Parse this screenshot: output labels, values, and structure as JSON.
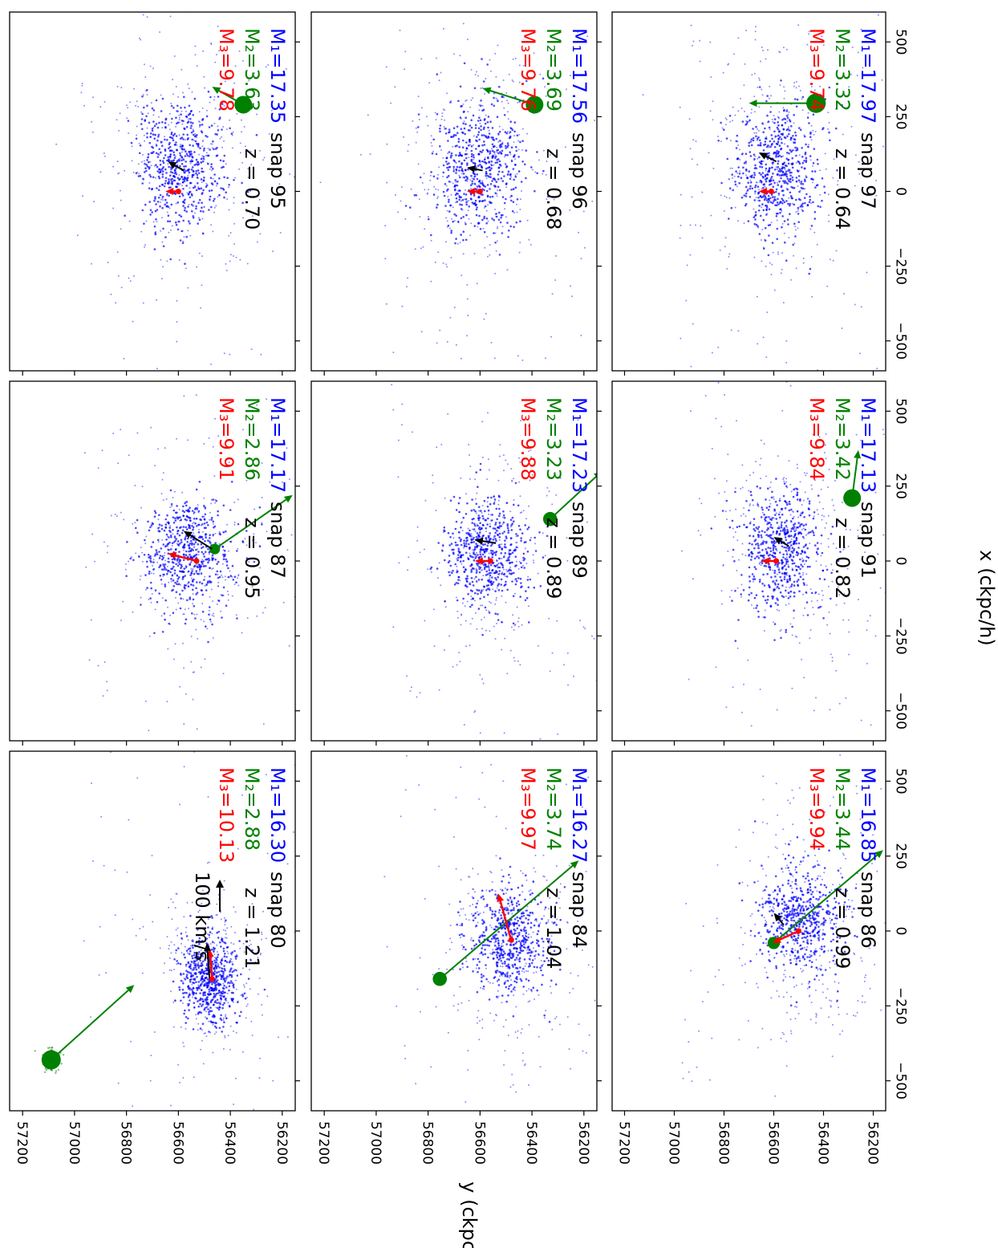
{
  "figure": {
    "x_axis_label": "x (ckpc/h)",
    "y_axis_label": "y (ckpc/h)",
    "scale_arrow_label": "100 km/s"
  },
  "colors": {
    "primary": "#0000ff",
    "secondary": "#008000",
    "tertiary": "#ff0000",
    "velocity": "#000000"
  },
  "chart_data": {
    "type": "scatter",
    "orientation": "figure rotated 90 degrees clockwise",
    "xlabel": "x (ckpc/h)",
    "ylabel": "y (ckpc/h)",
    "xlim": [
      -600,
      600
    ],
    "ylim": [
      56150,
      57250
    ],
    "x_ticks": [
      -500,
      -250,
      0,
      250,
      500
    ],
    "x_tick_labels": [
      "−500",
      "−250",
      "0",
      "250",
      "500"
    ],
    "y_ticks": [
      56200,
      56400,
      56600,
      56800,
      57000,
      57200
    ],
    "y_tick_labels": [
      "56200",
      "56400",
      "56600",
      "56800",
      "57000",
      "57200"
    ],
    "grid": false,
    "panels": [
      {
        "snap_label": "snap 80",
        "z_label": "z = 1.21",
        "m1_label": "M₁=16.30",
        "m2_label": "M₂=2.88",
        "m3_label": "M₃=10.13",
        "scale_arrow": true,
        "blob": {
          "x": -160,
          "y": 56480,
          "sx": 70,
          "sy": 55,
          "n": 560
        },
        "halo": {
          "x": -120,
          "y": 56470,
          "sx": 150,
          "sy": 110,
          "n": 250
        },
        "sat": {
          "x": -430,
          "y": 57090,
          "r": 20
        },
        "sat_arrow": {
          "x0": -430,
          "y0": 57090,
          "x1": -180,
          "y1": 56770
        },
        "red_arrow": {
          "x0": -160,
          "y0": 56470,
          "x1": -60,
          "y1": 56480
        },
        "black_arrow": {
          "x0": -160,
          "y0": 56480,
          "x1": -40,
          "y1": 56490
        }
      },
      {
        "snap_label": "snap 84",
        "z_label": "z = 1.04",
        "m1_label": "M₁=16.27",
        "m2_label": "M₂=3.74",
        "m3_label": "M₃=9.97",
        "scale_arrow": false,
        "blob": {
          "x": -30,
          "y": 56490,
          "sx": 85,
          "sy": 75,
          "n": 520
        },
        "halo": {
          "x": -40,
          "y": 56500,
          "sx": 180,
          "sy": 130,
          "n": 260
        },
        "sat": {
          "x": -160,
          "y": 56755,
          "r": 16
        },
        "sat_arrow": {
          "x0": -160,
          "y0": 56755,
          "x1": 235,
          "y1": 56220
        },
        "red_arrow": {
          "x0": -30,
          "y0": 56480,
          "x1": 125,
          "y1": 56530
        },
        "black_arrow": null
      },
      {
        "snap_label": "snap 86",
        "z_label": "z = 0.99",
        "m1_label": "M₁=16.85",
        "m2_label": "M₂=3.44",
        "m3_label": "M₃=9.94",
        "scale_arrow": false,
        "blob": {
          "x": 40,
          "y": 56490,
          "sx": 90,
          "sy": 85,
          "n": 520
        },
        "halo": {
          "x": 0,
          "y": 56480,
          "sx": 180,
          "sy": 140,
          "n": 260
        },
        "sat": {
          "x": -40,
          "y": 56600,
          "r": 14
        },
        "sat_arrow": {
          "x0": -40,
          "y0": 56600,
          "x1": 270,
          "y1": 56160
        },
        "red_arrow": {
          "x0": 0,
          "y0": 56500,
          "x1": -40,
          "y1": 56605
        },
        "black_arrow": {
          "x0": 20,
          "y0": 56560,
          "x1": 60,
          "y1": 56600
        }
      },
      {
        "snap_label": "snap 87",
        "z_label": "z = 0.95",
        "m1_label": "M₁=17.17",
        "m2_label": "M₂=2.86",
        "m3_label": "M₃=9.91",
        "scale_arrow": false,
        "blob": {
          "x": 30,
          "y": 56560,
          "sx": 90,
          "sy": 80,
          "n": 520
        },
        "halo": {
          "x": 0,
          "y": 56540,
          "sx": 170,
          "sy": 130,
          "n": 260
        },
        "sat": {
          "x": 40,
          "y": 56460,
          "r": 12
        },
        "sat_arrow": {
          "x0": 40,
          "y0": 56460,
          "x1": 220,
          "y1": 56160
        },
        "red_arrow": {
          "x0": 0,
          "y0": 56530,
          "x1": 25,
          "y1": 56640
        },
        "black_arrow": {
          "x0": 40,
          "y0": 56470,
          "x1": 100,
          "y1": 56580
        }
      },
      {
        "snap_label": "snap 89",
        "z_label": "z = 0.89",
        "m1_label": "M₁=17.23",
        "m2_label": "M₂=3.23",
        "m3_label": "M₃=9.88",
        "scale_arrow": false,
        "blob": {
          "x": 30,
          "y": 56570,
          "sx": 90,
          "sy": 80,
          "n": 520
        },
        "halo": {
          "x": 20,
          "y": 56560,
          "sx": 170,
          "sy": 130,
          "n": 260
        },
        "sat": {
          "x": 140,
          "y": 56330,
          "r": 16
        },
        "sat_arrow": {
          "x0": 140,
          "y0": 56330,
          "x1": 300,
          "y1": 56130
        },
        "red_arrow": {
          "x0": 0,
          "y0": 56560,
          "x1": 0,
          "y1": 56620
        },
        "black_arrow": {
          "x0": 60,
          "y0": 56540,
          "x1": 70,
          "y1": 56620
        }
      },
      {
        "snap_label": "snap 91",
        "z_label": "z = 0.82",
        "m1_label": "M₁=17.13",
        "m2_label": "M₂=3.42",
        "m3_label": "M₃=9.84",
        "scale_arrow": false,
        "blob": {
          "x": 40,
          "y": 56570,
          "sx": 95,
          "sy": 85,
          "n": 520
        },
        "halo": {
          "x": 60,
          "y": 56540,
          "sx": 190,
          "sy": 140,
          "n": 280
        },
        "sat": {
          "x": 210,
          "y": 56285,
          "r": 20
        },
        "sat_arrow": {
          "x0": 210,
          "y0": 56285,
          "x1": 370,
          "y1": 56260
        },
        "red_arrow": {
          "x0": 0,
          "y0": 56590,
          "x1": 0,
          "y1": 56650
        },
        "black_arrow": {
          "x0": 50,
          "y0": 56540,
          "x1": 80,
          "y1": 56600
        }
      },
      {
        "snap_label": "snap 95",
        "z_label": "z = 0.70",
        "m1_label": "M₁=17.35",
        "m2_label": "M₂=3.63",
        "m3_label": "M₃=9.78",
        "scale_arrow": false,
        "blob": {
          "x": 80,
          "y": 56590,
          "sx": 110,
          "sy": 85,
          "n": 540
        },
        "halo": {
          "x": 120,
          "y": 56600,
          "sx": 200,
          "sy": 160,
          "n": 300
        },
        "sat": {
          "x": 290,
          "y": 56350,
          "r": 20
        },
        "sat_arrow": {
          "x0": 290,
          "y0": 56350,
          "x1": 350,
          "y1": 56470
        },
        "red_arrow": {
          "x0": 0,
          "y0": 56600,
          "x1": 0,
          "y1": 56650
        },
        "black_arrow": {
          "x0": 70,
          "y0": 56580,
          "x1": 100,
          "y1": 56640
        }
      },
      {
        "snap_label": "snap 96",
        "z_label": "z = 0.68",
        "m1_label": "M₁=17.56",
        "m2_label": "M₂=3.69",
        "m3_label": "M₃=9.76",
        "scale_arrow": false,
        "blob": {
          "x": 80,
          "y": 56600,
          "sx": 110,
          "sy": 85,
          "n": 540
        },
        "halo": {
          "x": 120,
          "y": 56610,
          "sx": 210,
          "sy": 160,
          "n": 300
        },
        "sat": {
          "x": 290,
          "y": 56390,
          "r": 20
        },
        "sat_arrow": {
          "x0": 290,
          "y0": 56390,
          "x1": 345,
          "y1": 56590
        },
        "red_arrow": {
          "x0": 0,
          "y0": 56600,
          "x1": 0,
          "y1": 56650
        },
        "black_arrow": {
          "x0": 70,
          "y0": 56590,
          "x1": 80,
          "y1": 56650
        }
      },
      {
        "snap_label": "snap 97",
        "z_label": "z = 0.64",
        "m1_label": "M₁=17.97",
        "m2_label": "M₂=3.32",
        "m3_label": "M₃=9.74",
        "scale_arrow": false,
        "blob": {
          "x": 80,
          "y": 56590,
          "sx": 110,
          "sy": 85,
          "n": 540
        },
        "halo": {
          "x": 130,
          "y": 56620,
          "sx": 210,
          "sy": 160,
          "n": 300
        },
        "sat": {
          "x": 295,
          "y": 56430,
          "r": 22
        },
        "sat_arrow": {
          "x0": 295,
          "y0": 56430,
          "x1": 295,
          "y1": 56700
        },
        "red_arrow": {
          "x0": 0,
          "y0": 56610,
          "x1": 0,
          "y1": 56660
        },
        "black_arrow": {
          "x0": 100,
          "y0": 56590,
          "x1": 130,
          "y1": 56660
        }
      }
    ]
  }
}
